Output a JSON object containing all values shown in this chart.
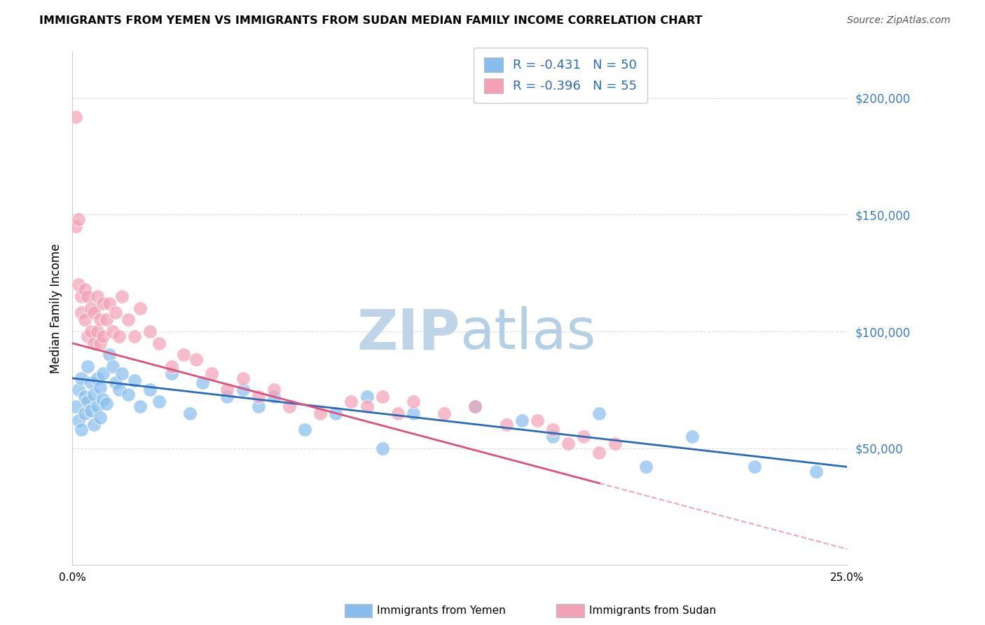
{
  "title": "IMMIGRANTS FROM YEMEN VS IMMIGRANTS FROM SUDAN MEDIAN FAMILY INCOME CORRELATION CHART",
  "source": "Source: ZipAtlas.com",
  "ylabel": "Median Family Income",
  "ylabel_right_ticks": [
    "$200,000",
    "$150,000",
    "$100,000",
    "$50,000"
  ],
  "ylabel_right_values": [
    200000,
    150000,
    100000,
    50000
  ],
  "xlim": [
    0.0,
    0.25
  ],
  "ylim": [
    0,
    220000
  ],
  "legend_r_yemen": "-0.431",
  "legend_n_yemen": "50",
  "legend_r_sudan": "-0.396",
  "legend_n_sudan": "55",
  "color_yemen": "#87BEEE",
  "color_sudan": "#F4A0B5",
  "color_trendline_yemen": "#2B6CB8",
  "color_trendline_sudan": "#E0507A",
  "background": "#FFFFFF",
  "grid_color": "#DDDDDD",
  "yemen_x": [
    0.001,
    0.002,
    0.002,
    0.003,
    0.003,
    0.004,
    0.004,
    0.005,
    0.005,
    0.006,
    0.006,
    0.007,
    0.007,
    0.008,
    0.008,
    0.009,
    0.009,
    0.01,
    0.01,
    0.011,
    0.012,
    0.013,
    0.014,
    0.015,
    0.016,
    0.018,
    0.02,
    0.022,
    0.025,
    0.028,
    0.032,
    0.038,
    0.042,
    0.05,
    0.055,
    0.06,
    0.065,
    0.075,
    0.085,
    0.095,
    0.1,
    0.11,
    0.13,
    0.145,
    0.155,
    0.17,
    0.185,
    0.2,
    0.22,
    0.24
  ],
  "yemen_y": [
    68000,
    75000,
    62000,
    80000,
    58000,
    72000,
    65000,
    85000,
    70000,
    78000,
    66000,
    73000,
    60000,
    80000,
    68000,
    76000,
    63000,
    82000,
    71000,
    69000,
    90000,
    85000,
    78000,
    75000,
    82000,
    73000,
    79000,
    68000,
    75000,
    70000,
    82000,
    65000,
    78000,
    72000,
    75000,
    68000,
    72000,
    58000,
    65000,
    72000,
    50000,
    65000,
    68000,
    62000,
    55000,
    65000,
    42000,
    55000,
    42000,
    40000
  ],
  "sudan_x": [
    0.001,
    0.001,
    0.002,
    0.002,
    0.003,
    0.003,
    0.004,
    0.004,
    0.005,
    0.005,
    0.006,
    0.006,
    0.007,
    0.007,
    0.008,
    0.008,
    0.009,
    0.009,
    0.01,
    0.01,
    0.011,
    0.012,
    0.013,
    0.014,
    0.015,
    0.016,
    0.018,
    0.02,
    0.022,
    0.025,
    0.028,
    0.032,
    0.036,
    0.04,
    0.045,
    0.05,
    0.055,
    0.06,
    0.065,
    0.07,
    0.08,
    0.09,
    0.095,
    0.1,
    0.105,
    0.11,
    0.12,
    0.13,
    0.14,
    0.15,
    0.155,
    0.16,
    0.165,
    0.17,
    0.175
  ],
  "sudan_y": [
    192000,
    145000,
    148000,
    120000,
    115000,
    108000,
    118000,
    105000,
    115000,
    98000,
    110000,
    100000,
    108000,
    95000,
    115000,
    100000,
    105000,
    95000,
    112000,
    98000,
    105000,
    112000,
    100000,
    108000,
    98000,
    115000,
    105000,
    98000,
    110000,
    100000,
    95000,
    85000,
    90000,
    88000,
    82000,
    75000,
    80000,
    72000,
    75000,
    68000,
    65000,
    70000,
    68000,
    72000,
    65000,
    70000,
    65000,
    68000,
    60000,
    62000,
    58000,
    52000,
    55000,
    48000,
    52000
  ]
}
